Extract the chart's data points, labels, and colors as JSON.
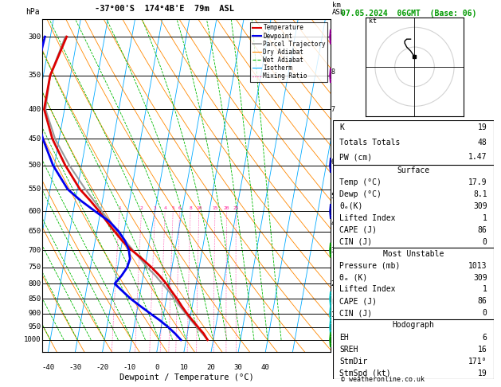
{
  "title_left": "-37°00'S  174°4B'E  79m  ASL",
  "date_title": "07.05.2024  06GMT  (Base: 06)",
  "xlabel": "Dewpoint / Temperature (°C)",
  "plevels": [
    300,
    350,
    400,
    450,
    500,
    550,
    600,
    650,
    700,
    750,
    800,
    850,
    900,
    950,
    1000
  ],
  "temp_data": {
    "pressure": [
      1000,
      975,
      950,
      925,
      900,
      875,
      850,
      825,
      800,
      775,
      750,
      725,
      700,
      675,
      650,
      625,
      600,
      575,
      550,
      500,
      450,
      400,
      350,
      300
    ],
    "temperature": [
      17.9,
      16.0,
      13.5,
      11.0,
      8.5,
      6.2,
      4.0,
      1.5,
      -1.0,
      -4.0,
      -7.5,
      -11.5,
      -16.0,
      -20.0,
      -23.5,
      -27.0,
      -30.5,
      -34.5,
      -39.0,
      -46.0,
      -52.5,
      -57.5,
      -57.5,
      -54.0
    ],
    "dewpoint": [
      8.1,
      5.5,
      2.5,
      -1.0,
      -5.0,
      -9.0,
      -13.0,
      -16.5,
      -20.0,
      -18.0,
      -16.5,
      -16.0,
      -17.0,
      -19.0,
      -22.0,
      -26.0,
      -32.0,
      -38.0,
      -43.5,
      -50.5,
      -56.0,
      -61.0,
      -63.0,
      -62.0
    ]
  },
  "parcel": {
    "pressure": [
      1000,
      975,
      950,
      925,
      900,
      875,
      850,
      825,
      800,
      775,
      750,
      700,
      650,
      600,
      550,
      500,
      450,
      400,
      350,
      300
    ],
    "temperature": [
      17.9,
      15.5,
      13.0,
      10.5,
      8.0,
      5.5,
      3.0,
      0.5,
      -2.5,
      -5.5,
      -9.0,
      -15.5,
      -22.5,
      -29.5,
      -37.0,
      -44.5,
      -51.5,
      -57.0,
      -57.5,
      -54.5
    ]
  },
  "xlim": [
    -40,
    40
  ],
  "pbot": 1050,
  "ptop": 280,
  "skew_factor": 22,
  "dry_adiabat_color": "#FF8800",
  "wet_adiabat_color": "#00BB00",
  "isotherm_color": "#00AAFF",
  "mixing_ratio_color": "#FF1493",
  "temp_color": "#DD0000",
  "dewp_color": "#0000EE",
  "parcel_color": "#999999",
  "km_ticks": [
    1,
    2,
    3,
    4,
    5,
    6,
    7,
    8
  ],
  "km_pressures": [
    905,
    800,
    700,
    630,
    565,
    493,
    400,
    345
  ],
  "mixing_ratio_lines": [
    1,
    2,
    3,
    4,
    5,
    6,
    8,
    10,
    15,
    20,
    25
  ],
  "lcl_pressure": 862,
  "stats": {
    "K": 19,
    "Totals_Totals": 48,
    "PW_cm": 1.47,
    "Surface_Temp": 17.9,
    "Surface_Dewp": 8.1,
    "Surface_ThE": 309,
    "Surface_LI": 1,
    "Surface_CAPE": 86,
    "Surface_CIN": 0,
    "MU_Pressure": 1013,
    "MU_ThE": 309,
    "MU_LI": 1,
    "MU_CAPE": 86,
    "MU_CIN": 0,
    "Hodo_EH": 6,
    "Hodo_SREH": 16,
    "Hodo_StmDir": 171,
    "Hodo_StmSpd": 19
  },
  "hodo_u": [
    0,
    -2,
    -4,
    -5,
    -5,
    -4,
    -3,
    -2
  ],
  "hodo_v": [
    5,
    8,
    10,
    12,
    13,
    14,
    14,
    14
  ],
  "wb_pressures": [
    300,
    350,
    500,
    600,
    700,
    850,
    900,
    950,
    1000
  ],
  "wb_colors": [
    "#AA00AA",
    "#AA00AA",
    "#0000CC",
    "#0000CC",
    "#00AA00",
    "#00CCCC",
    "#00CCCC",
    "#00CCCC",
    "#00AA00"
  ]
}
